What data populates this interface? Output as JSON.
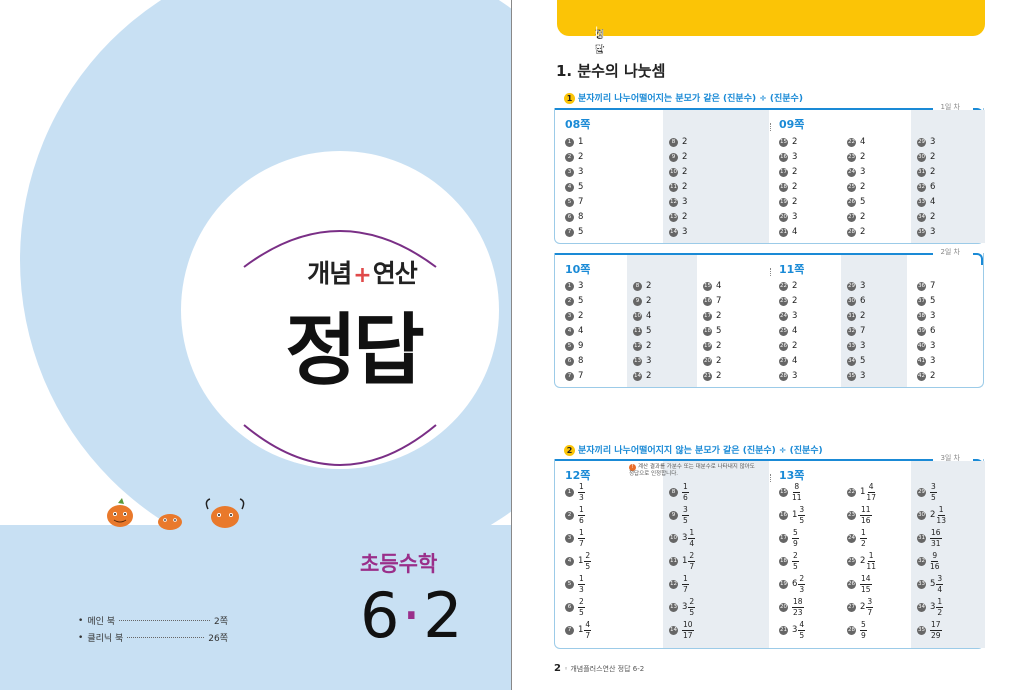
{
  "cover": {
    "brand_left": "개념",
    "brand_plus": "+",
    "brand_right": "연산",
    "title": "정답",
    "grade_label": "초등수학",
    "grade_major": "6",
    "grade_dot": "·",
    "grade_minor": "2",
    "toc": [
      {
        "label": "메인 북",
        "page": "2쪽"
      },
      {
        "label": "클리닉 북",
        "page": "26쪽"
      }
    ],
    "colors": {
      "circle": "#c8e0f3",
      "accent": "#9a2f8a",
      "plus": "#e04a4a"
    }
  },
  "answers": {
    "header": {
      "label": "정답",
      "sub": "메인 북"
    },
    "section_title": "1. 분수의 나눗셈",
    "sub1": {
      "num": "1",
      "text": "분자끼리 나누어떨어지는 분모가 같은 (진분수) ÷ (진분수)"
    },
    "sub2": {
      "num": "2",
      "text": "분자끼리 나누어떨어지지 않는 분모가 같은 (진분수) ÷ (진분수)"
    },
    "panel1": {
      "day": "1일 차",
      "pages": [
        "08쪽",
        "09쪽"
      ],
      "columns": [
        {
          "items": [
            [
              "1",
              "1"
            ],
            [
              "2",
              "2"
            ],
            [
              "3",
              "3"
            ],
            [
              "4",
              "5"
            ],
            [
              "5",
              "7"
            ],
            [
              "6",
              "8"
            ],
            [
              "7",
              "5"
            ]
          ]
        },
        {
          "items": [
            [
              "8",
              "2"
            ],
            [
              "9",
              "2"
            ],
            [
              "10",
              "2"
            ],
            [
              "11",
              "2"
            ],
            [
              "12",
              "3"
            ],
            [
              "13",
              "2"
            ],
            [
              "14",
              "3"
            ]
          ]
        },
        {
          "items": [
            [
              "15",
              "2"
            ],
            [
              "16",
              "3"
            ],
            [
              "17",
              "2"
            ],
            [
              "18",
              "2"
            ],
            [
              "19",
              "2"
            ],
            [
              "20",
              "3"
            ],
            [
              "21",
              "4"
            ]
          ]
        },
        {
          "items": [
            [
              "22",
              "4"
            ],
            [
              "23",
              "2"
            ],
            [
              "24",
              "3"
            ],
            [
              "25",
              "2"
            ],
            [
              "26",
              "5"
            ],
            [
              "27",
              "2"
            ],
            [
              "28",
              "2"
            ]
          ]
        },
        {
          "items": [
            [
              "29",
              "3"
            ],
            [
              "30",
              "2"
            ],
            [
              "31",
              "2"
            ],
            [
              "32",
              "6"
            ],
            [
              "33",
              "4"
            ],
            [
              "34",
              "2"
            ],
            [
              "35",
              "3"
            ]
          ]
        }
      ]
    },
    "panel2": {
      "day": "2일 차",
      "pages": [
        "10쪽",
        "11쪽"
      ],
      "columns": [
        {
          "items": [
            [
              "1",
              "3"
            ],
            [
              "2",
              "5"
            ],
            [
              "3",
              "2"
            ],
            [
              "4",
              "4"
            ],
            [
              "5",
              "9"
            ],
            [
              "6",
              "8"
            ],
            [
              "7",
              "7"
            ]
          ]
        },
        {
          "items": [
            [
              "8",
              "2"
            ],
            [
              "9",
              "2"
            ],
            [
              "10",
              "4"
            ],
            [
              "11",
              "5"
            ],
            [
              "12",
              "2"
            ],
            [
              "13",
              "3"
            ],
            [
              "14",
              "2"
            ]
          ]
        },
        {
          "items": [
            [
              "15",
              "4"
            ],
            [
              "16",
              "7"
            ],
            [
              "17",
              "2"
            ],
            [
              "18",
              "5"
            ],
            [
              "19",
              "2"
            ],
            [
              "20",
              "2"
            ],
            [
              "21",
              "2"
            ]
          ]
        },
        {
          "items": [
            [
              "22",
              "2"
            ],
            [
              "23",
              "2"
            ],
            [
              "24",
              "3"
            ],
            [
              "25",
              "4"
            ],
            [
              "26",
              "2"
            ],
            [
              "27",
              "4"
            ],
            [
              "28",
              "3"
            ]
          ]
        },
        {
          "items": [
            [
              "29",
              "3"
            ],
            [
              "30",
              "6"
            ],
            [
              "31",
              "2"
            ],
            [
              "32",
              "7"
            ],
            [
              "33",
              "3"
            ],
            [
              "34",
              "5"
            ],
            [
              "35",
              "3"
            ]
          ]
        },
        {
          "items": [
            [
              "36",
              "7"
            ],
            [
              "37",
              "5"
            ],
            [
              "38",
              "3"
            ],
            [
              "39",
              "6"
            ],
            [
              "40",
              "3"
            ],
            [
              "41",
              "3"
            ],
            [
              "42",
              "2"
            ]
          ]
        }
      ]
    },
    "panel3": {
      "day": "3일 차",
      "pages": [
        "12쪽",
        "13쪽"
      ],
      "note": "계산 결과를 가분수 또는 대분수로 나타내지 않아도 정답으로 인정합니다.",
      "note_mark": "!",
      "columns": [
        {
          "items": [
            [
              "1",
              "",
              "1",
              "3"
            ],
            [
              "2",
              "",
              "1",
              "6"
            ],
            [
              "3",
              "",
              "1",
              "7"
            ],
            [
              "4",
              "1",
              "2",
              "5"
            ],
            [
              "5",
              "",
              "1",
              "3"
            ],
            [
              "6",
              "",
              "2",
              "5"
            ],
            [
              "7",
              "1",
              "4",
              "7"
            ]
          ]
        },
        {
          "items": [
            [
              "8",
              "",
              "1",
              "6"
            ],
            [
              "9",
              "",
              "3",
              "5"
            ],
            [
              "10",
              "3",
              "1",
              "4"
            ],
            [
              "11",
              "1",
              "2",
              "7"
            ],
            [
              "12",
              "",
              "1",
              "7"
            ],
            [
              "13",
              "3",
              "2",
              "5"
            ],
            [
              "14",
              "",
              "10",
              "17"
            ]
          ]
        },
        {
          "items": [
            [
              "15",
              "",
              "8",
              "11"
            ],
            [
              "16",
              "1",
              "3",
              "5"
            ],
            [
              "17",
              "",
              "5",
              "9"
            ],
            [
              "18",
              "",
              "2",
              "5"
            ],
            [
              "19",
              "6",
              "2",
              "3"
            ],
            [
              "20",
              "",
              "18",
              "23"
            ],
            [
              "21",
              "3",
              "4",
              "5"
            ]
          ]
        },
        {
          "items": [
            [
              "22",
              "1",
              "4",
              "17"
            ],
            [
              "23",
              "",
              "11",
              "16"
            ],
            [
              "24",
              "",
              "1",
              "2"
            ],
            [
              "25",
              "2",
              "1",
              "11"
            ],
            [
              "26",
              "",
              "14",
              "15"
            ],
            [
              "27",
              "2",
              "3",
              "7"
            ],
            [
              "28",
              "",
              "5",
              "9"
            ]
          ]
        },
        {
          "items": [
            [
              "29",
              "",
              "3",
              "5"
            ],
            [
              "30",
              "2",
              "1",
              "13"
            ],
            [
              "31",
              "",
              "16",
              "31"
            ],
            [
              "32",
              "",
              "9",
              "16"
            ],
            [
              "33",
              "5",
              "3",
              "4"
            ],
            [
              "34",
              "3",
              "1",
              "2"
            ],
            [
              "35",
              "",
              "17",
              "29"
            ]
          ]
        }
      ]
    },
    "footer": {
      "page": "2",
      "text": "개념플러스연산 정답 6-2"
    }
  }
}
